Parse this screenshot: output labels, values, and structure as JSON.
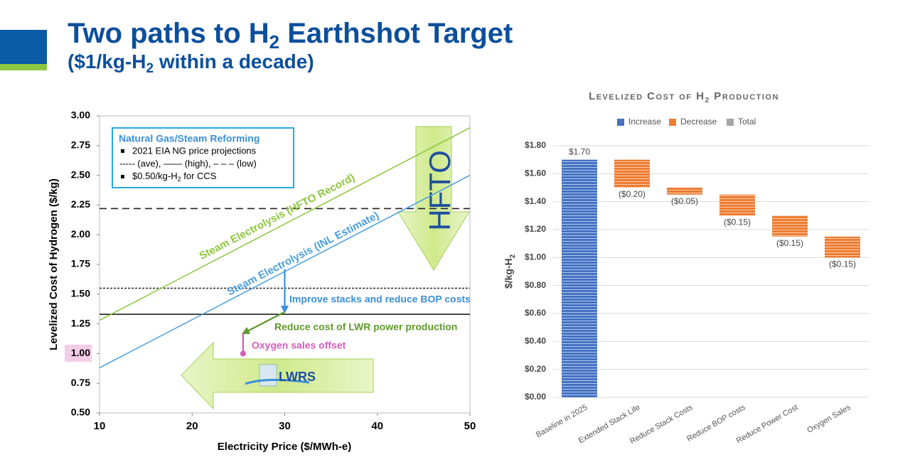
{
  "header": {
    "title": [
      "Two paths to H",
      "2",
      " Earthshot Target"
    ],
    "subtitle": [
      "($1/kg-H",
      "2",
      " within a decade)"
    ]
  },
  "chart_data": [
    {
      "type": "line",
      "ylabel": "Levelized Cost of Hydrogen ($/kg)",
      "xlabel": "Electricity Price ($/MWh-e)",
      "xlim": [
        10,
        50
      ],
      "ylim": [
        0.5,
        3.0
      ],
      "xticks": [
        10,
        20,
        30,
        40,
        50
      ],
      "yticks": [
        {
          "value": 0.5,
          "label": "0.50"
        },
        {
          "value": 0.75,
          "label": "0.75"
        },
        {
          "value": 1.0,
          "label": "1.00"
        },
        {
          "value": 1.25,
          "label": "1.25"
        },
        {
          "value": 1.5,
          "label": "1.50"
        },
        {
          "value": 1.75,
          "label": "1.75"
        },
        {
          "value": 2.0,
          "label": "2.00"
        },
        {
          "value": 2.25,
          "label": "2.25"
        },
        {
          "value": 2.5,
          "label": "2.50"
        },
        {
          "value": 2.75,
          "label": "2.75"
        },
        {
          "value": 3.0,
          "label": "3.00"
        }
      ],
      "x": [
        10,
        50
      ],
      "series": [
        {
          "name": "Steam Electrolysis (HFTO Record)",
          "color": "#8dc63f",
          "values": [
            1.28,
            2.9
          ]
        },
        {
          "name": "Steam Electrolysis (INL Estimate)",
          "color": "#4a9fe0",
          "values": [
            0.88,
            2.5
          ]
        }
      ],
      "reference_lines": [
        {
          "value": 2.22,
          "style": "dashed"
        },
        {
          "value": 1.55,
          "style": "dotted"
        },
        {
          "value": 1.33,
          "style": "solid"
        }
      ],
      "legend_box": {
        "title": "Natural Gas/Steam Reforming",
        "items": [
          "2021 EIA NG price projections",
          "----- (ave), —— (high), – – – (low)"
        ],
        "ccs_note": [
          "$0.50/kg-H",
          "2",
          " for CCS"
        ]
      },
      "steps": {
        "x": [
          30,
          30,
          25.5,
          25.5
        ],
        "values": [
          1.71,
          1.35,
          1.17,
          1.0
        ],
        "colors": [
          "#3a8fd8",
          "#5f9a2a",
          "#d55bb8"
        ]
      },
      "annotations": [
        "Improve stacks and reduce BOP costs",
        "Reduce cost of LWR power production",
        "Oxygen sales offset"
      ],
      "arrow_labels": [
        "HFTO",
        "LWRS"
      ]
    },
    {
      "type": "waterfall",
      "title": [
        "Levelized Cost of H",
        "2",
        " Production"
      ],
      "ylabel": [
        "$/kg-H",
        "2"
      ],
      "categories": [
        "Baseline in 2025",
        "Extended Stack Life",
        "Reduce Stack Costs",
        "Reduce BOP costs",
        "Reduce Power Cost",
        "Oxygen Sales"
      ],
      "series": [
        {
          "name": "Increase",
          "color": "#4472c4",
          "values": [
            1.7,
            null,
            null,
            null,
            null,
            null
          ],
          "value_labels": [
            "$1.70",
            null,
            null,
            null,
            null,
            null
          ]
        },
        {
          "name": "Decrease",
          "color": "#ed7d31",
          "values": [
            null,
            -0.2,
            -0.05,
            -0.15,
            -0.15,
            -0.15
          ],
          "value_labels": [
            null,
            "($0.20)",
            "($0.05)",
            "($0.15)",
            "($0.15)",
            "($0.15)"
          ]
        },
        {
          "name": "Total",
          "color": "#a5a5a5",
          "values": [
            null,
            null,
            null,
            null,
            null,
            null
          ],
          "value_labels": [
            null,
            null,
            null,
            null,
            null,
            null
          ]
        }
      ],
      "ylim": [
        0,
        1.8
      ],
      "yticks": [
        {
          "value": 0,
          "label": "$0.00"
        },
        {
          "value": 0.2,
          "label": "$0.20"
        },
        {
          "value": 0.4,
          "label": "$0.40"
        },
        {
          "value": 0.6,
          "label": "$0.60"
        },
        {
          "value": 0.8,
          "label": "$0.80"
        },
        {
          "value": 1.0,
          "label": "$1.00"
        },
        {
          "value": 1.2,
          "label": "$1.20"
        },
        {
          "value": 1.4,
          "label": "$1.40"
        },
        {
          "value": 1.6,
          "label": "$1.60"
        },
        {
          "value": 1.8,
          "label": "$1.80"
        }
      ],
      "grid": true
    }
  ]
}
